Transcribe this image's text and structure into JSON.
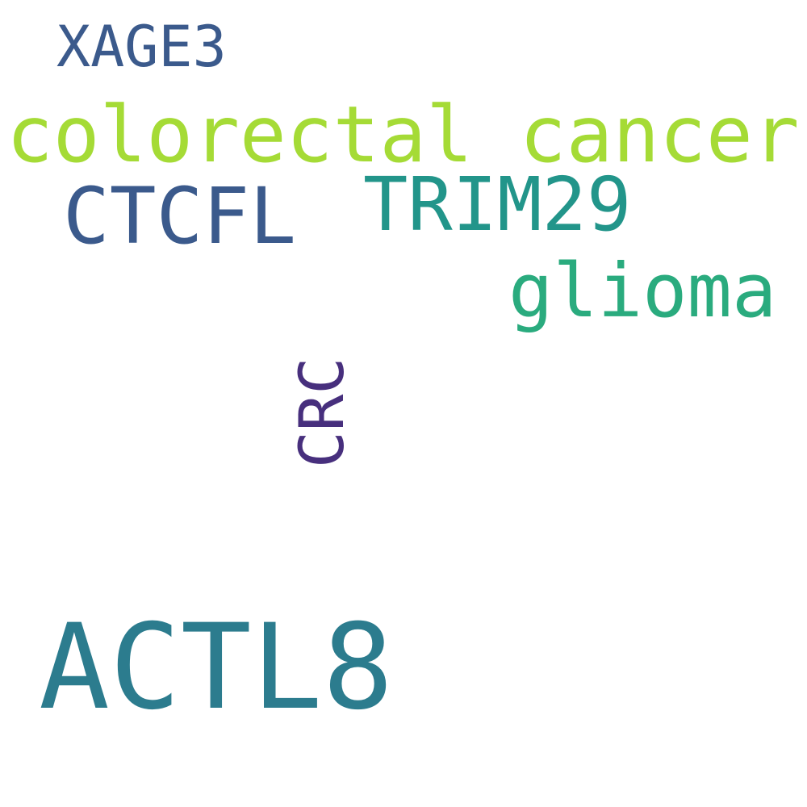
{
  "cloud": {
    "background": "#ffffff",
    "words": [
      {
        "key": "actl8",
        "text": "ACTL8",
        "color": "#2c7c8e"
      },
      {
        "key": "colorectal",
        "text": "colorectal cancer",
        "color": "#a5db36"
      },
      {
        "key": "ctcfl",
        "text": "CTCFL",
        "color": "#3b5a8c"
      },
      {
        "key": "trim29",
        "text": "TRIM29",
        "color": "#22958a"
      },
      {
        "key": "glioma",
        "text": "glioma",
        "color": "#2aab7e"
      },
      {
        "key": "xage3",
        "text": "XAGE3",
        "color": "#3b5a8c"
      },
      {
        "key": "crc",
        "text": "CRC",
        "color": "#472f7d"
      }
    ]
  }
}
